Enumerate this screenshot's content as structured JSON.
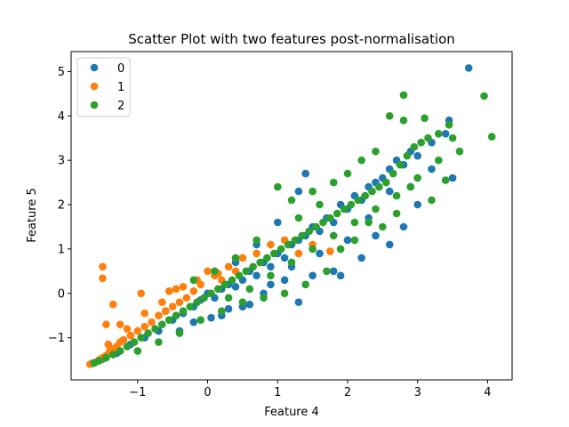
{
  "chart_data": {
    "type": "scatter",
    "title": "Scatter Plot with two features post-normalisation",
    "xlabel": "Feature 4",
    "ylabel": "Feature 5",
    "xlim": [
      -1.95,
      4.35
    ],
    "ylim": [
      -1.95,
      5.45
    ],
    "xticks": [
      -1,
      0,
      1,
      2,
      3,
      4
    ],
    "yticks": [
      -1,
      0,
      1,
      2,
      3,
      4,
      5
    ],
    "xtick_labels": [
      "−1",
      "0",
      "1",
      "2",
      "3",
      "4"
    ],
    "ytick_labels": [
      "−1",
      "0",
      "1",
      "2",
      "3",
      "4",
      "5"
    ],
    "legend": "top-left",
    "grid": false,
    "series": [
      {
        "name": "0",
        "color": "#1f77b4",
        "points": [
          [
            -1.65,
            -1.58
          ],
          [
            -1.5,
            -1.48
          ],
          [
            -1.3,
            -1.35
          ],
          [
            -1.1,
            -1.15
          ],
          [
            -0.9,
            -1.0
          ],
          [
            -0.7,
            -0.85
          ],
          [
            -0.5,
            -0.6
          ],
          [
            -0.35,
            -0.45
          ],
          [
            -0.2,
            -0.3
          ],
          [
            -0.1,
            -0.15
          ],
          [
            0.0,
            0.0
          ],
          [
            0.1,
            -0.1
          ],
          [
            0.2,
            0.1
          ],
          [
            0.3,
            0.2
          ],
          [
            0.4,
            0.15
          ],
          [
            0.5,
            0.3
          ],
          [
            0.6,
            0.5
          ],
          [
            0.7,
            0.4
          ],
          [
            0.8,
            0.7
          ],
          [
            0.9,
            0.6
          ],
          [
            1.0,
            0.9
          ],
          [
            1.1,
            0.8
          ],
          [
            1.2,
            1.1
          ],
          [
            1.3,
            1.2
          ],
          [
            1.4,
            1.3
          ],
          [
            1.5,
            1.5
          ],
          [
            1.6,
            1.4
          ],
          [
            1.7,
            1.7
          ],
          [
            1.8,
            1.6
          ],
          [
            1.9,
            2.0
          ],
          [
            2.0,
            1.9
          ],
          [
            2.1,
            2.2
          ],
          [
            2.2,
            2.1
          ],
          [
            2.3,
            2.4
          ],
          [
            2.4,
            2.5
          ],
          [
            2.5,
            2.6
          ],
          [
            2.6,
            2.8
          ],
          [
            2.7,
            3.0
          ],
          [
            2.8,
            2.9
          ],
          [
            2.9,
            3.2
          ],
          [
            3.0,
            3.1
          ],
          [
            3.2,
            3.4
          ],
          [
            3.4,
            3.6
          ],
          [
            3.45,
            3.9
          ],
          [
            3.5,
            2.6
          ],
          [
            3.73,
            5.08
          ],
          [
            1.4,
            2.7
          ],
          [
            1.3,
            2.3
          ],
          [
            1.0,
            1.6
          ],
          [
            0.7,
            1.1
          ],
          [
            0.4,
            0.7
          ],
          [
            -0.6,
            -0.4
          ],
          [
            0.2,
            -0.5
          ],
          [
            0.5,
            -0.3
          ],
          [
            0.8,
            0.0
          ],
          [
            1.1,
            0.3
          ],
          [
            1.3,
            -0.2
          ],
          [
            1.5,
            0.4
          ],
          [
            1.8,
            0.5
          ],
          [
            1.9,
            0.4
          ],
          [
            2.2,
            0.8
          ],
          [
            2.4,
            1.3
          ],
          [
            2.6,
            1.1
          ],
          [
            2.8,
            1.5
          ],
          [
            3.0,
            2.0
          ],
          [
            3.2,
            2.8
          ],
          [
            -0.4,
            -0.85
          ],
          [
            -0.2,
            -0.65
          ],
          [
            0.05,
            -0.55
          ],
          [
            0.3,
            -0.35
          ],
          [
            0.6,
            -0.25
          ],
          [
            0.9,
            0.2
          ],
          [
            1.2,
            0.6
          ],
          [
            1.6,
            0.9
          ],
          [
            2.0,
            1.2
          ],
          [
            2.3,
            1.7
          ],
          [
            2.6,
            2.3
          ],
          [
            2.9,
            2.4
          ]
        ]
      },
      {
        "name": "1",
        "color": "#ff7f0e",
        "points": [
          [
            -1.68,
            -1.6
          ],
          [
            -1.6,
            -1.55
          ],
          [
            -1.55,
            -1.5
          ],
          [
            -1.5,
            -1.45
          ],
          [
            -1.45,
            -1.4
          ],
          [
            -1.4,
            -1.3
          ],
          [
            -1.35,
            -1.25
          ],
          [
            -1.3,
            -1.2
          ],
          [
            -1.25,
            -1.1
          ],
          [
            -1.2,
            -1.05
          ],
          [
            -1.1,
            -0.95
          ],
          [
            -1.0,
            -0.85
          ],
          [
            -0.9,
            -0.75
          ],
          [
            -0.8,
            -0.65
          ],
          [
            -0.7,
            -0.5
          ],
          [
            -0.6,
            -0.4
          ],
          [
            -0.5,
            -0.3
          ],
          [
            -0.4,
            -0.2
          ],
          [
            -0.3,
            -0.1
          ],
          [
            -0.2,
            0.05
          ],
          [
            -0.1,
            0.2
          ],
          [
            0.0,
            0.5
          ],
          [
            0.1,
            0.4
          ],
          [
            0.2,
            0.3
          ],
          [
            0.3,
            0.6
          ],
          [
            0.4,
            0.5
          ],
          [
            0.5,
            0.8
          ],
          [
            0.7,
            0.9
          ],
          [
            0.9,
            1.1
          ],
          [
            1.1,
            1.2
          ],
          [
            1.3,
            0.9
          ],
          [
            1.5,
            1.1
          ],
          [
            1.75,
            0.95
          ],
          [
            -1.5,
            0.6
          ],
          [
            -1.5,
            0.34
          ],
          [
            -1.35,
            -0.25
          ],
          [
            -1.45,
            -0.7
          ],
          [
            -1.42,
            -1.15
          ],
          [
            -0.95,
            0.0
          ],
          [
            -0.55,
            0.05
          ],
          [
            -0.45,
            0.1
          ],
          [
            -0.9,
            -0.45
          ],
          [
            -1.15,
            -0.8
          ],
          [
            -1.25,
            -0.7
          ],
          [
            -0.65,
            -0.2
          ],
          [
            -0.35,
            0.15
          ],
          [
            -0.15,
            0.3
          ],
          [
            0.15,
            0.45
          ]
        ]
      },
      {
        "name": "2",
        "color": "#2ca02c",
        "points": [
          [
            -1.62,
            -1.57
          ],
          [
            -1.55,
            -1.52
          ],
          [
            -1.45,
            -1.45
          ],
          [
            -1.35,
            -1.38
          ],
          [
            -1.25,
            -1.3
          ],
          [
            -1.15,
            -1.2
          ],
          [
            -1.05,
            -1.1
          ],
          [
            -0.95,
            -1.0
          ],
          [
            -0.85,
            -0.9
          ],
          [
            -0.75,
            -0.8
          ],
          [
            -0.65,
            -0.7
          ],
          [
            -0.55,
            -0.6
          ],
          [
            -0.45,
            -0.5
          ],
          [
            -0.35,
            -0.4
          ],
          [
            -0.25,
            -0.3
          ],
          [
            -0.15,
            -0.2
          ],
          [
            -0.05,
            -0.1
          ],
          [
            0.05,
            0.0
          ],
          [
            0.15,
            0.1
          ],
          [
            0.25,
            0.2
          ],
          [
            0.35,
            0.3
          ],
          [
            0.45,
            0.4
          ],
          [
            0.55,
            0.5
          ],
          [
            0.65,
            0.6
          ],
          [
            0.75,
            0.7
          ],
          [
            0.85,
            0.8
          ],
          [
            0.95,
            0.9
          ],
          [
            1.05,
            1.0
          ],
          [
            1.15,
            1.1
          ],
          [
            1.25,
            1.2
          ],
          [
            1.35,
            1.3
          ],
          [
            1.45,
            1.4
          ],
          [
            1.55,
            1.5
          ],
          [
            1.65,
            1.6
          ],
          [
            1.75,
            1.7
          ],
          [
            1.85,
            1.8
          ],
          [
            1.95,
            1.9
          ],
          [
            2.05,
            2.0
          ],
          [
            2.15,
            2.1
          ],
          [
            2.25,
            2.2
          ],
          [
            2.35,
            2.3
          ],
          [
            2.45,
            2.4
          ],
          [
            2.55,
            2.5
          ],
          [
            2.65,
            2.7
          ],
          [
            2.75,
            2.9
          ],
          [
            2.85,
            3.1
          ],
          [
            2.95,
            3.3
          ],
          [
            3.05,
            3.4
          ],
          [
            3.15,
            3.5
          ],
          [
            3.3,
            3.6
          ],
          [
            3.45,
            3.8
          ],
          [
            2.8,
            4.47
          ],
          [
            2.6,
            4.0
          ],
          [
            2.8,
            3.9
          ],
          [
            3.1,
            3.95
          ],
          [
            3.95,
            4.45
          ],
          [
            4.06,
            3.53
          ],
          [
            3.5,
            3.5
          ],
          [
            3.4,
            2.55
          ],
          [
            3.2,
            2.1
          ],
          [
            2.9,
            2.4
          ],
          [
            2.7,
            1.8
          ],
          [
            2.5,
            1.5
          ],
          [
            2.3,
            1.6
          ],
          [
            2.1,
            1.2
          ],
          [
            1.9,
            1.0
          ],
          [
            1.7,
            0.5
          ],
          [
            1.4,
            0.2
          ],
          [
            1.1,
            0.0
          ],
          [
            0.8,
            -0.1
          ],
          [
            0.5,
            -0.2
          ],
          [
            0.2,
            -0.4
          ],
          [
            -0.1,
            -0.6
          ],
          [
            -0.4,
            -0.9
          ],
          [
            -0.7,
            -1.1
          ],
          [
            -1.0,
            -1.3
          ],
          [
            1.0,
            2.4
          ],
          [
            1.2,
            2.1
          ],
          [
            1.5,
            2.3
          ],
          [
            1.8,
            2.5
          ],
          [
            2.0,
            2.7
          ],
          [
            2.2,
            3.0
          ],
          [
            2.4,
            3.2
          ],
          [
            -0.2,
            0.3
          ],
          [
            0.1,
            0.5
          ],
          [
            0.4,
            0.8
          ],
          [
            0.7,
            1.2
          ],
          [
            1.3,
            1.7
          ],
          [
            1.6,
            2.0
          ],
          [
            0.3,
            -0.1
          ],
          [
            0.6,
            0.1
          ],
          [
            0.9,
            0.4
          ],
          [
            1.2,
            0.7
          ],
          [
            1.5,
            1.0
          ],
          [
            1.8,
            1.3
          ],
          [
            2.1,
            1.6
          ],
          [
            2.4,
            1.9
          ],
          [
            2.7,
            2.2
          ],
          [
            3.0,
            2.6
          ],
          [
            3.3,
            3.0
          ],
          [
            3.6,
            3.2
          ]
        ]
      }
    ]
  }
}
